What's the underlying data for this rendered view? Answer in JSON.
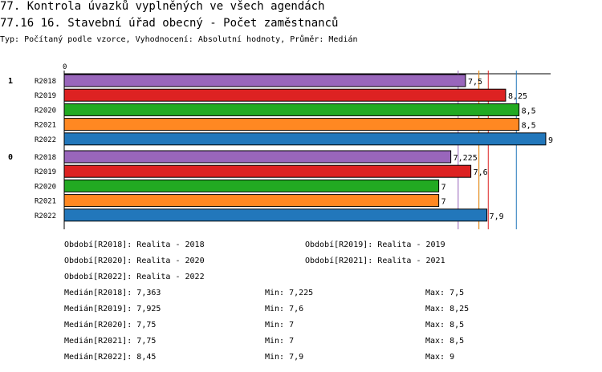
{
  "header": {
    "title": "77. Kontrola úvazků vyplněných ve všech agendách",
    "subtitle": "77.16 16. Stavební úřad obecný - Počet zaměstnanců",
    "info": "Typ: Počítaný podle vzorce, Vyhodnocení: Absolutní hodnoty, Průměr: Medián"
  },
  "chart_data": {
    "type": "bar",
    "orientation": "horizontal",
    "axis_zero_label": "0",
    "groups": [
      {
        "label": "1",
        "series": [
          {
            "name": "R2018",
            "value": 7.5,
            "label": "7,5"
          },
          {
            "name": "R2019",
            "value": 8.25,
            "label": "8,25"
          },
          {
            "name": "R2020",
            "value": 8.5,
            "label": "8,5"
          },
          {
            "name": "R2021",
            "value": 8.5,
            "label": "8,5"
          },
          {
            "name": "R2022",
            "value": 9,
            "label": "9"
          }
        ]
      },
      {
        "label": "0",
        "series": [
          {
            "name": "R2018",
            "value": 7.225,
            "label": "7,225"
          },
          {
            "name": "R2019",
            "value": 7.6,
            "label": "7,6"
          },
          {
            "name": "R2020",
            "value": 7,
            "label": "7"
          },
          {
            "name": "R2021",
            "value": 7,
            "label": "7"
          },
          {
            "name": "R2022",
            "value": 7.9,
            "label": "7,9"
          }
        ]
      }
    ],
    "xlim": [
      0,
      9
    ],
    "colors": {
      "R2018": "#9966bb",
      "R2019": "#dd2222",
      "R2020": "#22aa22",
      "R2021": "#ff8822",
      "R2022": "#2277bb"
    },
    "median_lines": [
      {
        "series": "R2018",
        "value": 7.363
      },
      {
        "series": "R2019",
        "value": 7.925
      },
      {
        "series": "R2020",
        "value": 7.75
      },
      {
        "series": "R2021",
        "value": 7.75
      },
      {
        "series": "R2022",
        "value": 8.45
      }
    ]
  },
  "legend": {
    "periods": [
      "Období[R2018]: Realita - 2018",
      "Období[R2019]: Realita - 2019",
      "Období[R2020]: Realita - 2020",
      "Období[R2021]: Realita - 2021",
      "Období[R2022]: Realita - 2022"
    ],
    "stats": [
      {
        "median": "Medián[R2018]: 7,363",
        "min": "Min: 7,225",
        "max": "Max: 7,5"
      },
      {
        "median": "Medián[R2019]: 7,925",
        "min": "Min: 7,6",
        "max": "Max: 8,25"
      },
      {
        "median": "Medián[R2020]: 7,75",
        "min": "Min: 7",
        "max": "Max: 8,5"
      },
      {
        "median": "Medián[R2021]: 7,75",
        "min": "Min: 7",
        "max": "Max: 8,5"
      },
      {
        "median": "Medián[R2022]: 8,45",
        "min": "Min: 7,9",
        "max": "Max: 9"
      }
    ]
  }
}
